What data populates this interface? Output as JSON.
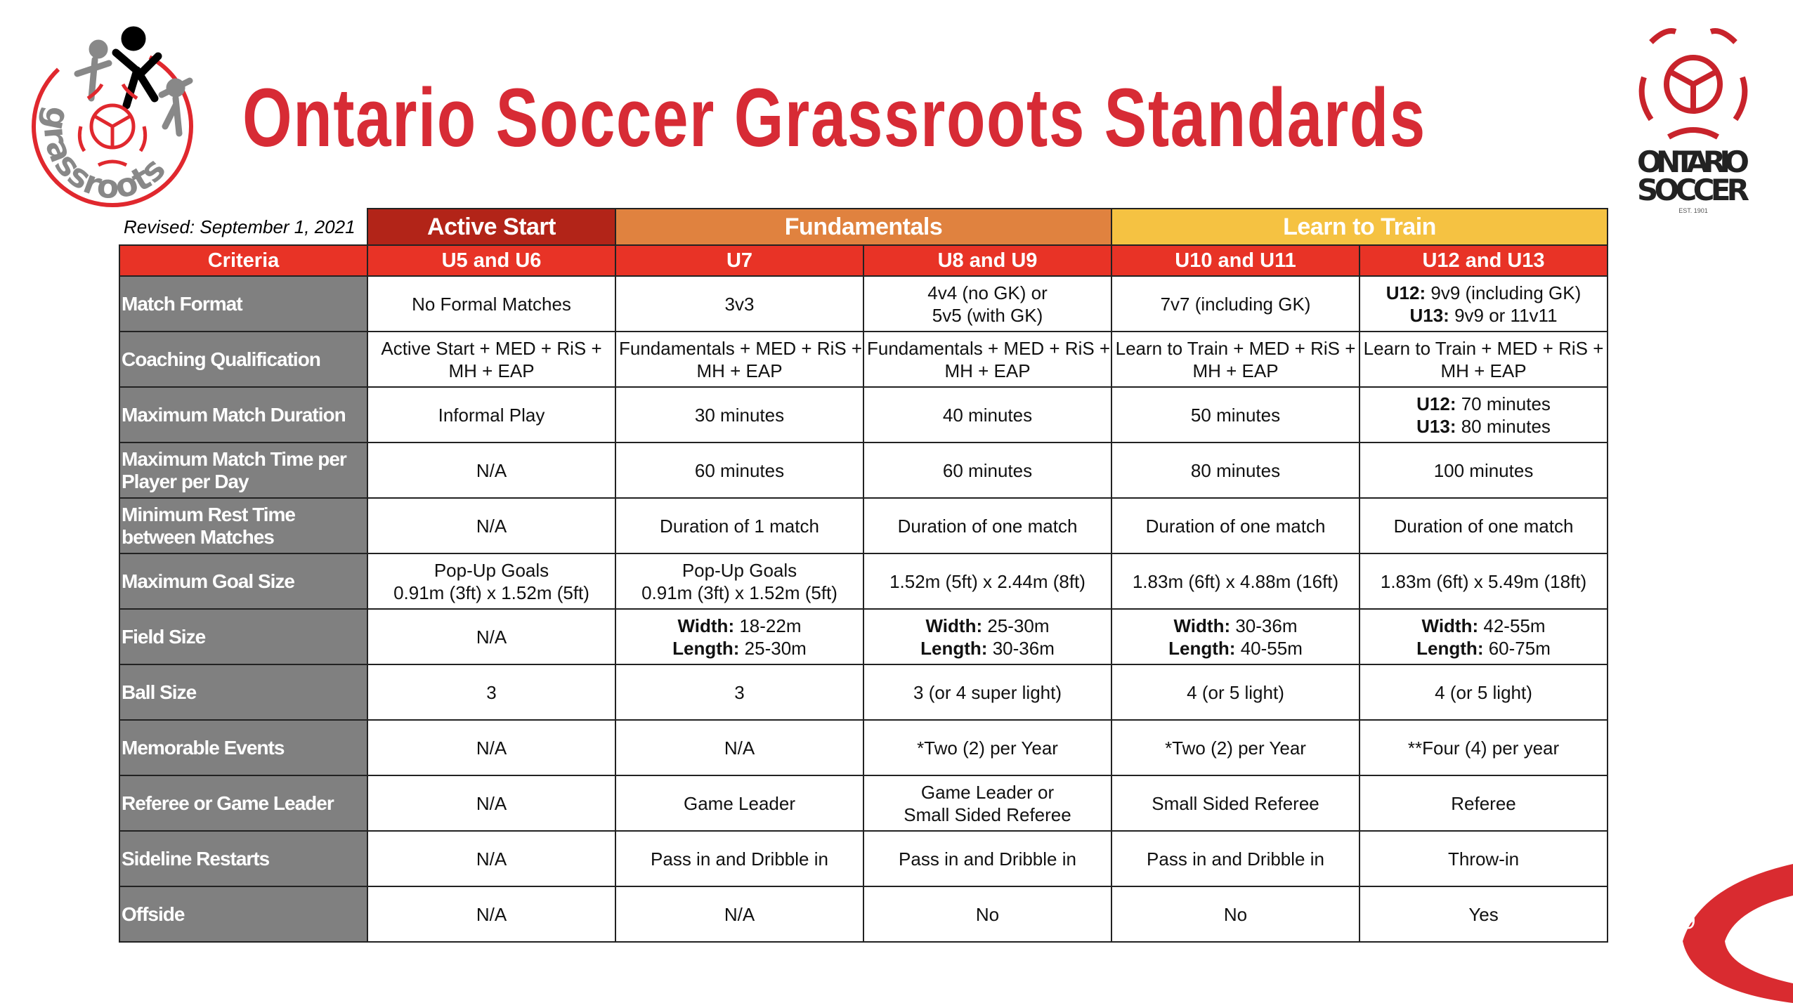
{
  "title": "Ontario Soccer Grassroots Standards",
  "revised": "Revised: September 1, 2021",
  "page_number": "9",
  "logos": {
    "left": "grassroots",
    "right_line1": "ONTARIO",
    "right_line2": "SOCCER",
    "right_est": "EST. 1901"
  },
  "colors": {
    "title": "#d72b35",
    "active_start": "#b22418",
    "fundamentals": "#e0823f",
    "learn_to_train": "#f5c242",
    "subheader": "#e83326",
    "criteria": "#808080"
  },
  "groups": [
    {
      "label": "Active Start",
      "span": 1,
      "color": "#b22418"
    },
    {
      "label": "Fundamentals",
      "span": 2,
      "color": "#e0823f"
    },
    {
      "label": "Learn to Train",
      "span": 2,
      "color": "#f5c242"
    }
  ],
  "columns": [
    "Criteria",
    "U5 and U6",
    "U7",
    "U8 and U9",
    "U10 and U11",
    "U12 and U13"
  ],
  "rows": [
    {
      "criteria": "Match Format",
      "cells": [
        [
          {
            "t": "No Formal Matches"
          }
        ],
        [
          {
            "t": "3v3"
          }
        ],
        [
          {
            "t": "4v4 (no GK) or"
          },
          {
            "t": "5v5 (with GK)"
          }
        ],
        [
          {
            "t": "7v7 (including GK)"
          }
        ],
        [
          {
            "b": "U12:",
            "t": " 9v9 (including GK)"
          },
          {
            "b": "U13:",
            "t": " 9v9 or 11v11"
          }
        ]
      ]
    },
    {
      "criteria": "Coaching Qualification",
      "cells": [
        [
          {
            "t": "Active Start + MED + RiS +"
          },
          {
            "t": "MH + EAP"
          }
        ],
        [
          {
            "t": "Fundamentals + MED + RiS +"
          },
          {
            "t": "MH + EAP"
          }
        ],
        [
          {
            "t": "Fundamentals + MED + RiS +"
          },
          {
            "t": "MH + EAP"
          }
        ],
        [
          {
            "t": "Learn to Train + MED + RiS +"
          },
          {
            "t": "MH + EAP"
          }
        ],
        [
          {
            "t": "Learn to Train + MED + RiS +"
          },
          {
            "t": "MH + EAP"
          }
        ]
      ]
    },
    {
      "criteria": "Maximum Match Duration",
      "cells": [
        [
          {
            "t": "Informal Play"
          }
        ],
        [
          {
            "t": "30 minutes"
          }
        ],
        [
          {
            "t": "40 minutes"
          }
        ],
        [
          {
            "t": "50 minutes"
          }
        ],
        [
          {
            "b": "U12:",
            "t": " 70 minutes"
          },
          {
            "b": "U13:",
            "t": " 80 minutes"
          }
        ]
      ]
    },
    {
      "criteria": "Maximum Match Time per Player per Day",
      "cells": [
        [
          {
            "t": "N/A"
          }
        ],
        [
          {
            "t": "60 minutes"
          }
        ],
        [
          {
            "t": "60 minutes"
          }
        ],
        [
          {
            "t": "80 minutes"
          }
        ],
        [
          {
            "t": "100 minutes"
          }
        ]
      ]
    },
    {
      "criteria": "Minimum Rest Time between Matches",
      "cells": [
        [
          {
            "t": "N/A"
          }
        ],
        [
          {
            "t": "Duration of 1 match"
          }
        ],
        [
          {
            "t": "Duration of one match"
          }
        ],
        [
          {
            "t": "Duration of one match"
          }
        ],
        [
          {
            "t": "Duration of one match"
          }
        ]
      ]
    },
    {
      "criteria": "Maximum Goal Size",
      "cells": [
        [
          {
            "t": "Pop-Up Goals"
          },
          {
            "t": "0.91m (3ft) x 1.52m (5ft)"
          }
        ],
        [
          {
            "t": "Pop-Up Goals"
          },
          {
            "t": "0.91m (3ft) x 1.52m (5ft)"
          }
        ],
        [
          {
            "t": "1.52m (5ft) x 2.44m (8ft)"
          }
        ],
        [
          {
            "t": "1.83m (6ft) x 4.88m (16ft)"
          }
        ],
        [
          {
            "t": "1.83m (6ft) x 5.49m (18ft)"
          }
        ]
      ]
    },
    {
      "criteria": "Field Size",
      "cells": [
        [
          {
            "t": "N/A"
          }
        ],
        [
          {
            "b": "Width:",
            "t": " 18-22m"
          },
          {
            "b": "Length:",
            "t": " 25-30m"
          }
        ],
        [
          {
            "b": "Width:",
            "t": " 25-30m"
          },
          {
            "b": "Length:",
            "t": " 30-36m"
          }
        ],
        [
          {
            "b": "Width:",
            "t": " 30-36m"
          },
          {
            "b": "Length:",
            "t": " 40-55m"
          }
        ],
        [
          {
            "b": "Width:",
            "t": " 42-55m"
          },
          {
            "b": "Length:",
            "t": " 60-75m"
          }
        ]
      ]
    },
    {
      "criteria": "Ball Size",
      "cells": [
        [
          {
            "t": "3"
          }
        ],
        [
          {
            "t": "3"
          }
        ],
        [
          {
            "t": "3 (or 4 super light)"
          }
        ],
        [
          {
            "t": "4 (or 5 light)"
          }
        ],
        [
          {
            "t": "4 (or 5 light)"
          }
        ]
      ]
    },
    {
      "criteria": "Memorable Events",
      "cells": [
        [
          {
            "t": "N/A"
          }
        ],
        [
          {
            "t": "N/A"
          }
        ],
        [
          {
            "t": "*Two (2) per Year"
          }
        ],
        [
          {
            "t": "*Two (2) per Year"
          }
        ],
        [
          {
            "t": "**Four (4) per year"
          }
        ]
      ]
    },
    {
      "criteria": "Referee or Game Leader",
      "cells": [
        [
          {
            "t": "N/A"
          }
        ],
        [
          {
            "t": "Game Leader"
          }
        ],
        [
          {
            "t": "Game Leader or"
          },
          {
            "t": "Small Sided Referee"
          }
        ],
        [
          {
            "t": "Small Sided Referee"
          }
        ],
        [
          {
            "t": "Referee"
          }
        ]
      ]
    },
    {
      "criteria": "Sideline Restarts",
      "cells": [
        [
          {
            "t": "N/A"
          }
        ],
        [
          {
            "t": "Pass in and Dribble in"
          }
        ],
        [
          {
            "t": "Pass in and Dribble in"
          }
        ],
        [
          {
            "t": "Pass in and Dribble in"
          }
        ],
        [
          {
            "t": "Throw-in"
          }
        ]
      ]
    },
    {
      "criteria": "Offside",
      "cells": [
        [
          {
            "t": "N/A"
          }
        ],
        [
          {
            "t": "N/A"
          }
        ],
        [
          {
            "t": "No"
          }
        ],
        [
          {
            "t": "No"
          }
        ],
        [
          {
            "t": "Yes"
          }
        ]
      ]
    }
  ]
}
